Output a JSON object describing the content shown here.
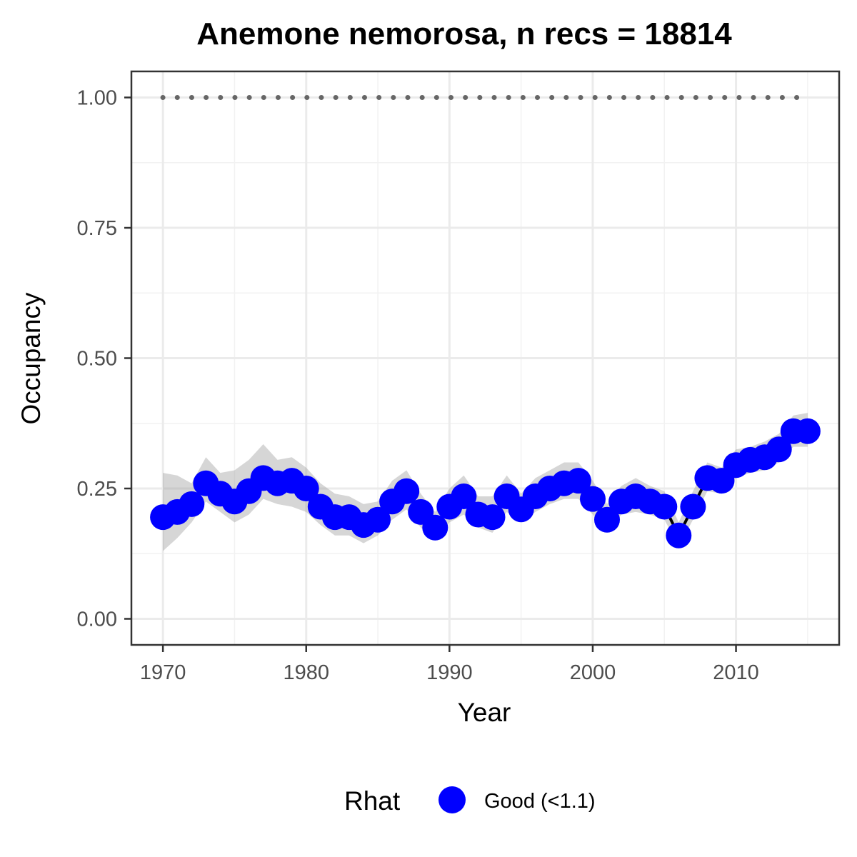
{
  "chart_data": {
    "type": "line",
    "title": "Anemone nemorosa, n recs = 18814",
    "xlabel": "Year",
    "ylabel": "Occupancy",
    "xlim": [
      1967.8,
      2017.2
    ],
    "ylim": [
      -0.05,
      1.05
    ],
    "x_ticks": [
      1970,
      1980,
      1990,
      2000,
      2010
    ],
    "x_tick_labels": [
      "1970",
      "1980",
      "1990",
      "2000",
      "2010"
    ],
    "y_ticks": [
      0,
      0.25,
      0.5,
      0.75,
      1.0
    ],
    "y_tick_labels": [
      "0.00",
      "0.25",
      "0.50",
      "0.75",
      "1.00"
    ],
    "grid": true,
    "x": [
      1970,
      1971,
      1972,
      1973,
      1974,
      1975,
      1976,
      1977,
      1978,
      1979,
      1980,
      1981,
      1982,
      1983,
      1984,
      1985,
      1986,
      1987,
      1988,
      1989,
      1990,
      1991,
      1992,
      1993,
      1994,
      1995,
      1996,
      1997,
      1998,
      1999,
      2000,
      2001,
      2002,
      2003,
      2004,
      2005,
      2006,
      2007,
      2008,
      2009,
      2010,
      2011,
      2012,
      2013,
      2014,
      2015
    ],
    "series": [
      {
        "name": "Good (<1.1)",
        "color": "#0000FF",
        "values": [
          0.195,
          0.205,
          0.22,
          0.26,
          0.24,
          0.225,
          0.245,
          0.27,
          0.26,
          0.265,
          0.25,
          0.215,
          0.195,
          0.195,
          0.18,
          0.19,
          0.225,
          0.245,
          0.205,
          0.175,
          0.215,
          0.235,
          0.2,
          0.195,
          0.235,
          0.21,
          0.235,
          0.25,
          0.26,
          0.265,
          0.23,
          0.19,
          0.225,
          0.235,
          0.225,
          0.215,
          0.16,
          0.215,
          0.27,
          0.265,
          0.295,
          0.305,
          0.31,
          0.325,
          0.36,
          0.36
        ],
        "lower": [
          0.13,
          0.155,
          0.185,
          0.225,
          0.205,
          0.185,
          0.2,
          0.23,
          0.22,
          0.215,
          0.205,
          0.18,
          0.16,
          0.16,
          0.145,
          0.16,
          0.19,
          0.21,
          0.175,
          0.15,
          0.185,
          0.2,
          0.175,
          0.165,
          0.205,
          0.185,
          0.205,
          0.22,
          0.23,
          0.23,
          0.2,
          0.165,
          0.2,
          0.205,
          0.2,
          0.19,
          0.14,
          0.19,
          0.245,
          0.24,
          0.27,
          0.28,
          0.285,
          0.3,
          0.33,
          0.33
        ],
        "upper": [
          0.28,
          0.275,
          0.26,
          0.31,
          0.28,
          0.285,
          0.305,
          0.335,
          0.305,
          0.31,
          0.29,
          0.26,
          0.24,
          0.235,
          0.22,
          0.225,
          0.265,
          0.285,
          0.24,
          0.205,
          0.25,
          0.275,
          0.235,
          0.235,
          0.275,
          0.24,
          0.27,
          0.285,
          0.3,
          0.3,
          0.265,
          0.22,
          0.255,
          0.27,
          0.255,
          0.245,
          0.185,
          0.245,
          0.3,
          0.29,
          0.325,
          0.33,
          0.34,
          0.355,
          0.39,
          0.395
        ]
      },
      {
        "name": "",
        "style": "dotted",
        "color": "#666666",
        "values": [
          1,
          1,
          1,
          1,
          1,
          1,
          1,
          1,
          1,
          1,
          1,
          1,
          1,
          1,
          1,
          1,
          1,
          1,
          1,
          1,
          1,
          1,
          1,
          1,
          1,
          1,
          1,
          1,
          1,
          1,
          1,
          1,
          1,
          1,
          1,
          1,
          1,
          1,
          1,
          1,
          1,
          1,
          1,
          1,
          1,
          1
        ]
      }
    ],
    "legend": {
      "title": "Rhat",
      "position": "bottom",
      "entries": [
        {
          "label": "Good (<1.1)",
          "color": "#0000FF"
        }
      ]
    }
  }
}
